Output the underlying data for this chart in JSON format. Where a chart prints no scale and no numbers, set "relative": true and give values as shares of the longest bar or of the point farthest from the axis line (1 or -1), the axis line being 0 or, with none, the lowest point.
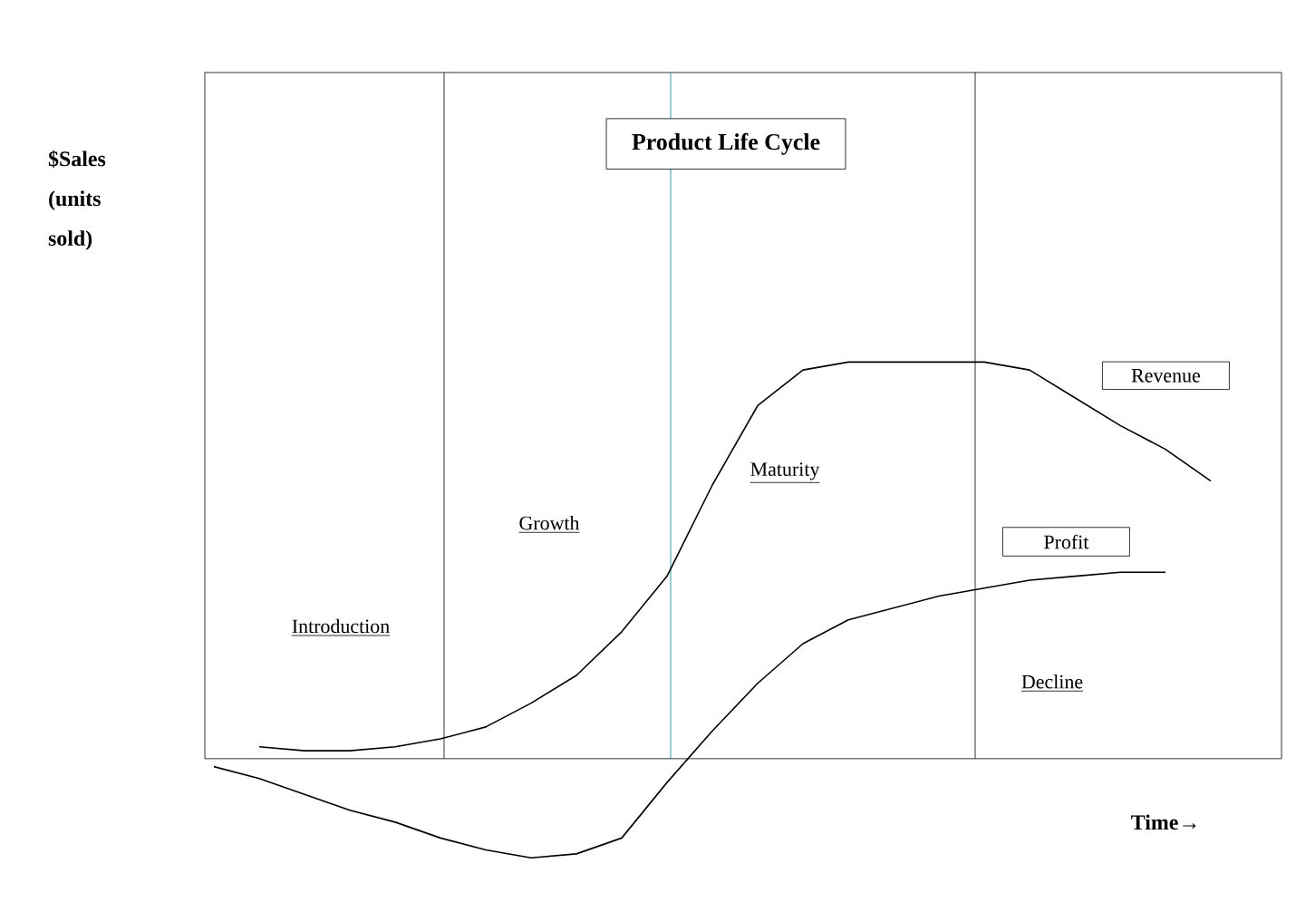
{
  "chart_data": {
    "type": "line",
    "title": "Product Life Cycle",
    "xlabel": "Time→",
    "relative": true,
    "categories": [
      null,
      null,
      null,
      null,
      null,
      null,
      null,
      null,
      null,
      null,
      null,
      null,
      null,
      null,
      null,
      null,
      null,
      null,
      null,
      null,
      null,
      null,
      null
    ],
    "series": [
      {
        "name": "Revenue",
        "color": "#000000",
        "values": [
          null,
          0.03,
          0.02,
          0.02,
          0.03,
          0.05,
          0.08,
          0.14,
          0.21,
          0.32,
          0.46,
          0.69,
          0.89,
          0.98,
          1.0,
          1.0,
          1.0,
          1.0,
          0.98,
          0.91,
          0.84,
          0.78,
          0.7
        ]
      },
      {
        "name": "Profit",
        "color": "#000000",
        "values": [
          -0.02,
          -0.05,
          -0.09,
          -0.13,
          -0.16,
          -0.2,
          -0.23,
          -0.25,
          -0.24,
          -0.2,
          -0.06,
          0.07,
          0.19,
          0.29,
          0.35,
          0.38,
          0.41,
          0.43,
          0.45,
          0.46,
          0.47,
          0.47,
          null
        ]
      }
    ],
    "annotations": [
      "$Sales (units sold)",
      "Introduction",
      "Growth",
      "Maturity",
      "Decline"
    ]
  }
}
